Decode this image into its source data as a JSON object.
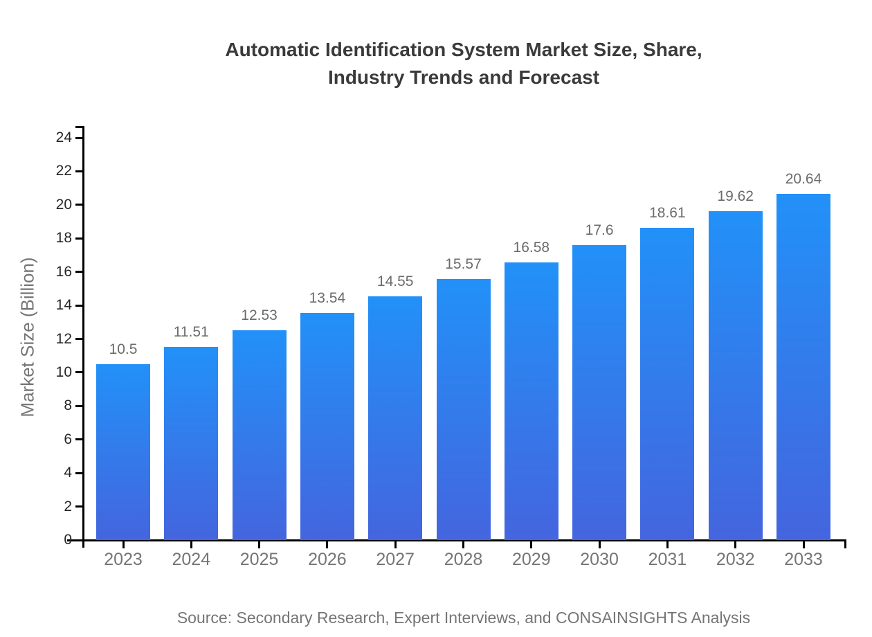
{
  "title": {
    "line1": "Automatic Identification System Market Size, Share,",
    "line2": "Industry Trends and Forecast"
  },
  "source": "Source: Secondary Research, Expert Interviews, and CONSAINSIGHTS Analysis",
  "chart_data": {
    "type": "bar",
    "title": "Automatic Identification System Market Size, Share, Industry Trends and Forecast",
    "categories": [
      "2023",
      "2024",
      "2025",
      "2026",
      "2027",
      "2028",
      "2029",
      "2030",
      "2031",
      "2032",
      "2033"
    ],
    "values": [
      10.5,
      11.51,
      12.53,
      13.54,
      14.55,
      15.57,
      16.58,
      17.6,
      18.61,
      19.62,
      20.64
    ],
    "value_labels": [
      "10.5",
      "11.51",
      "12.53",
      "13.54",
      "14.55",
      "15.57",
      "16.58",
      "17.6",
      "18.61",
      "19.62",
      "20.64"
    ],
    "xlabel": "",
    "ylabel": "Market Size (Billion)",
    "ylim": [
      0,
      24
    ],
    "yticks": [
      0,
      2,
      4,
      6,
      8,
      10,
      12,
      14,
      16,
      18,
      20,
      22,
      24
    ],
    "grid": false,
    "legend": false,
    "bar_color_top": "#2291F8",
    "bar_color_bottom": "#4465DE",
    "axis_color": "#000000",
    "tick_label_color": "#262626",
    "category_label_color": "#757575",
    "value_label_color": "#6b6b6b",
    "title_color": "#3a3a3a"
  }
}
